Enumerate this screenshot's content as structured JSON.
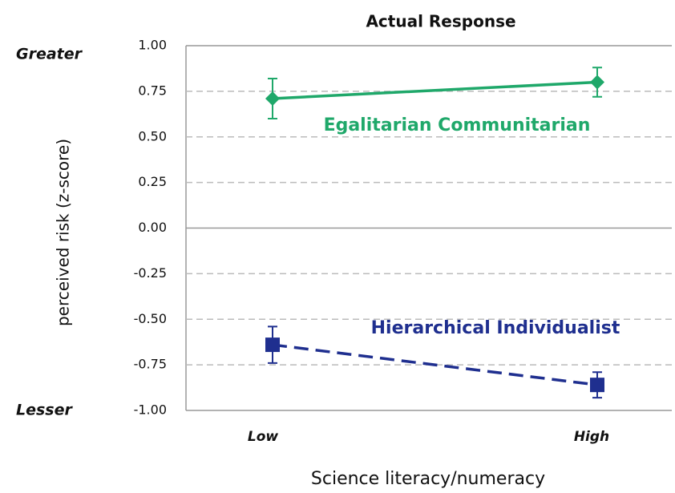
{
  "chart_data": {
    "type": "line",
    "title": "Actual Response",
    "ylabel": "perceived risk (z-score)",
    "xlabel": "Science literacy/numeracy",
    "annotations": [
      "Greater",
      "Lesser"
    ],
    "categories": [
      "Low",
      "High"
    ],
    "series": [
      {
        "name": "Egalitarian Communitarian",
        "color": "#1fa86a",
        "line_style": "solid",
        "marker": "diamond",
        "values": [
          0.71,
          0.8
        ],
        "errors": [
          0.11,
          0.08
        ]
      },
      {
        "name": "Hierarchical Individualist",
        "color": "#1f2f8f",
        "line_style": "dashed",
        "marker": "square",
        "values": [
          -0.64,
          -0.86
        ],
        "errors": [
          0.1,
          0.07
        ]
      }
    ],
    "ylim": [
      -1,
      1
    ],
    "yticks": [
      {
        "value": 1,
        "label": "1.00"
      },
      0.75,
      {
        "value": 0.5,
        "label": "0.50"
      },
      0.25,
      {
        "value": 0,
        "label": "0.00"
      },
      -0.25,
      {
        "value": -0.5,
        "label": "-0.50"
      },
      -0.75,
      {
        "value": -1,
        "label": "-1.00"
      }
    ],
    "grid": true
  }
}
